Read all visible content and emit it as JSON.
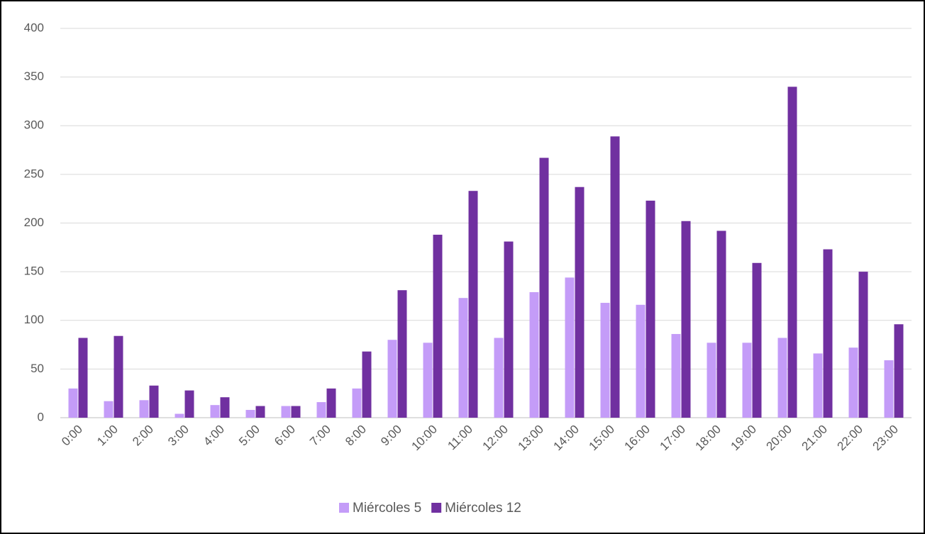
{
  "chart_data": {
    "type": "bar",
    "categories": [
      "0:00",
      "1:00",
      "2:00",
      "3:00",
      "4:00",
      "5:00",
      "6:00",
      "7:00",
      "8:00",
      "9:00",
      "10:00",
      "11:00",
      "12:00",
      "13:00",
      "14:00",
      "15:00",
      "16:00",
      "17:00",
      "18:00",
      "19:00",
      "20:00",
      "21:00",
      "22:00",
      "23:00"
    ],
    "series": [
      {
        "name": "Miércoles 5",
        "color": "#c49cf8",
        "values": [
          30,
          17,
          18,
          4,
          13,
          8,
          12,
          16,
          30,
          80,
          77,
          123,
          82,
          129,
          144,
          118,
          116,
          86,
          77,
          77,
          82,
          66,
          72,
          59
        ]
      },
      {
        "name": "Miércoles 12",
        "color": "#7030a0",
        "values": [
          82,
          84,
          33,
          28,
          21,
          12,
          12,
          30,
          68,
          131,
          188,
          233,
          181,
          267,
          237,
          289,
          223,
          202,
          192,
          159,
          340,
          173,
          150,
          96
        ]
      }
    ],
    "ylim": [
      0,
      400
    ],
    "yticks": [
      0,
      50,
      100,
      150,
      200,
      250,
      300,
      350,
      400
    ],
    "grid": true,
    "legend": "bottom"
  }
}
